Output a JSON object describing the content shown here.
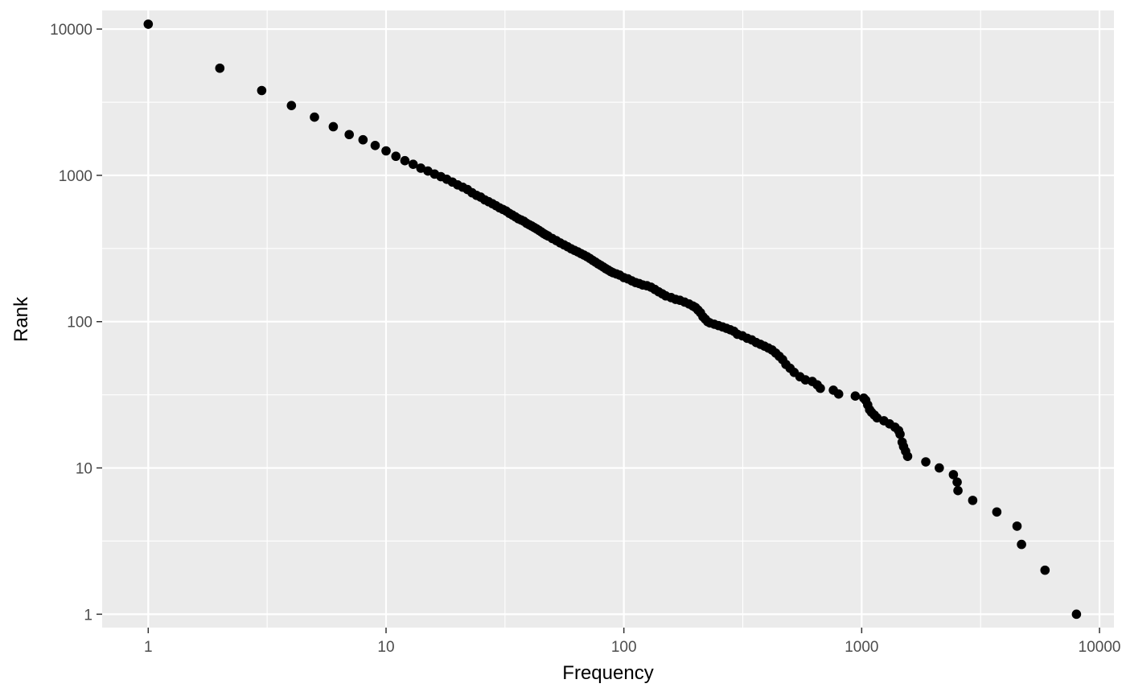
{
  "chart_data": {
    "type": "scatter",
    "title": "",
    "xlabel": "Frequency",
    "ylabel": "Rank",
    "xscale": "log10",
    "yscale": "log10",
    "xlim": [
      0.64,
      11500
    ],
    "ylim": [
      0.81,
      13400
    ],
    "x_ticks": [
      1,
      10,
      100,
      1000,
      10000
    ],
    "x_tick_labels": [
      "1",
      "10",
      "100",
      "1000",
      "10000"
    ],
    "y_ticks": [
      1,
      10,
      100,
      1000,
      10000
    ],
    "y_tick_labels": [
      "1",
      "10",
      "100",
      "1000",
      "10000"
    ],
    "grid": true,
    "colors": {
      "panel": "#ebebeb",
      "grid": "#ffffff",
      "point": "#000000",
      "tick_text": "#4d4d4d",
      "tick_mark": "#333333"
    },
    "points": [
      [
        1,
        10800
      ],
      [
        2,
        5400
      ],
      [
        3,
        3800
      ],
      [
        4,
        3000
      ],
      [
        5,
        2500
      ],
      [
        6,
        2150
      ],
      [
        7,
        1900
      ],
      [
        8,
        1750
      ],
      [
        9,
        1600
      ],
      [
        10,
        1470
      ],
      [
        11,
        1350
      ],
      [
        12,
        1260
      ],
      [
        13,
        1190
      ],
      [
        14,
        1120
      ],
      [
        15,
        1070
      ],
      [
        16,
        1020
      ],
      [
        17,
        980
      ],
      [
        18,
        940
      ],
      [
        19,
        900
      ],
      [
        20,
        860
      ],
      [
        21,
        830
      ],
      [
        22,
        800
      ],
      [
        23,
        760
      ],
      [
        24,
        730
      ],
      [
        25,
        710
      ],
      [
        26,
        680
      ],
      [
        27,
        660
      ],
      [
        28,
        640
      ],
      [
        29,
        620
      ],
      [
        30,
        600
      ],
      [
        31,
        585
      ],
      [
        32,
        570
      ],
      [
        33,
        550
      ],
      [
        34,
        535
      ],
      [
        35,
        520
      ],
      [
        36,
        505
      ],
      [
        37,
        495
      ],
      [
        38,
        485
      ],
      [
        39,
        470
      ],
      [
        40,
        460
      ],
      [
        41,
        450
      ],
      [
        42,
        440
      ],
      [
        43,
        430
      ],
      [
        44,
        420
      ],
      [
        45,
        410
      ],
      [
        46,
        400
      ],
      [
        47,
        392
      ],
      [
        48,
        385
      ],
      [
        50,
        370
      ],
      [
        52,
        358
      ],
      [
        54,
        345
      ],
      [
        56,
        335
      ],
      [
        58,
        325
      ],
      [
        60,
        315
      ],
      [
        62,
        307
      ],
      [
        64,
        300
      ],
      [
        66,
        292
      ],
      [
        68,
        285
      ],
      [
        70,
        278
      ],
      [
        72,
        270
      ],
      [
        74,
        262
      ],
      [
        76,
        255
      ],
      [
        78,
        248
      ],
      [
        80,
        242
      ],
      [
        82,
        236
      ],
      [
        84,
        230
      ],
      [
        86,
        225
      ],
      [
        88,
        220
      ],
      [
        90,
        216
      ],
      [
        93,
        212
      ],
      [
        96,
        208
      ],
      [
        100,
        200
      ],
      [
        104,
        196
      ],
      [
        108,
        190
      ],
      [
        112,
        185
      ],
      [
        116,
        182
      ],
      [
        120,
        178
      ],
      [
        125,
        176
      ],
      [
        130,
        172
      ],
      [
        135,
        166
      ],
      [
        140,
        160
      ],
      [
        145,
        155
      ],
      [
        150,
        150
      ],
      [
        158,
        146
      ],
      [
        165,
        142
      ],
      [
        172,
        140
      ],
      [
        180,
        136
      ],
      [
        188,
        132
      ],
      [
        195,
        128
      ],
      [
        200,
        125
      ],
      [
        205,
        120
      ],
      [
        210,
        115
      ],
      [
        215,
        108
      ],
      [
        220,
        104
      ],
      [
        225,
        100
      ],
      [
        230,
        98
      ],
      [
        240,
        96
      ],
      [
        250,
        94
      ],
      [
        260,
        92
      ],
      [
        270,
        90
      ],
      [
        280,
        88
      ],
      [
        290,
        86
      ],
      [
        300,
        82
      ],
      [
        315,
        80
      ],
      [
        330,
        77
      ],
      [
        345,
        75
      ],
      [
        360,
        72
      ],
      [
        375,
        70
      ],
      [
        390,
        68
      ],
      [
        405,
        66
      ],
      [
        420,
        64
      ],
      [
        435,
        61
      ],
      [
        450,
        58
      ],
      [
        465,
        55
      ],
      [
        480,
        51
      ],
      [
        500,
        48
      ],
      [
        520,
        45
      ],
      [
        550,
        42
      ],
      [
        580,
        40
      ],
      [
        620,
        39
      ],
      [
        650,
        37
      ],
      [
        670,
        35
      ],
      [
        760,
        34
      ],
      [
        800,
        32
      ],
      [
        940,
        31
      ],
      [
        1020,
        30
      ],
      [
        1040,
        29
      ],
      [
        1060,
        27
      ],
      [
        1080,
        25
      ],
      [
        1100,
        24
      ],
      [
        1130,
        23
      ],
      [
        1160,
        22
      ],
      [
        1240,
        21
      ],
      [
        1310,
        20
      ],
      [
        1380,
        19
      ],
      [
        1430,
        18
      ],
      [
        1450,
        17
      ],
      [
        1480,
        15
      ],
      [
        1500,
        14
      ],
      [
        1530,
        13
      ],
      [
        1560,
        12
      ],
      [
        1860,
        11
      ],
      [
        2120,
        10
      ],
      [
        2430,
        9
      ],
      [
        2520,
        8
      ],
      [
        2540,
        7
      ],
      [
        2930,
        6
      ],
      [
        3700,
        5
      ],
      [
        4500,
        4
      ],
      [
        4700,
        3
      ],
      [
        5900,
        2
      ],
      [
        8000,
        1
      ]
    ]
  }
}
